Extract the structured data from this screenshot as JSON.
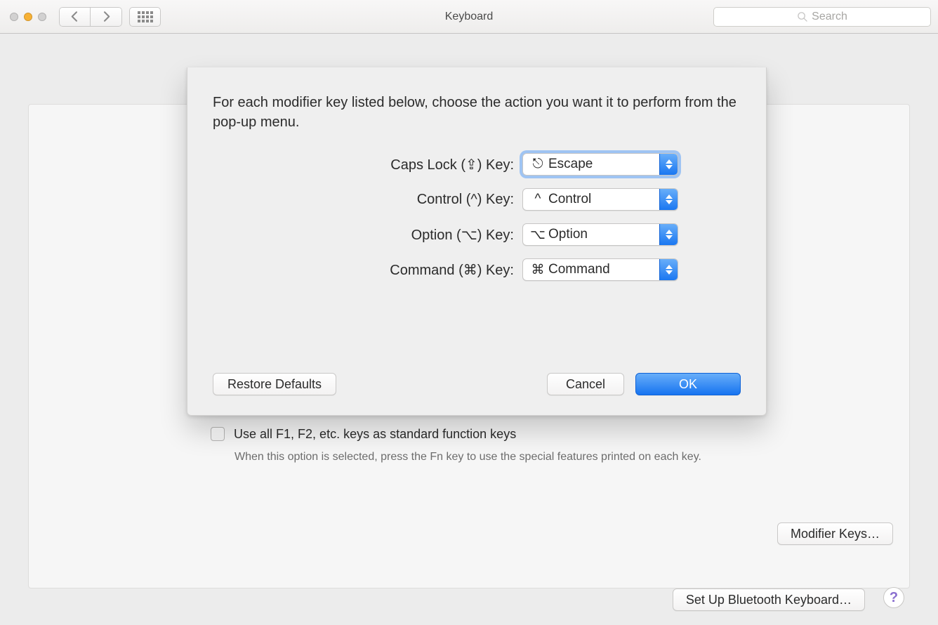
{
  "window": {
    "title": "Keyboard",
    "search_placeholder": "Search"
  },
  "sheet": {
    "description": "For each modifier key listed below, choose the action you want it to perform from the pop-up menu.",
    "rows": [
      {
        "label": "Caps Lock (⇪) Key:",
        "symbol": "⎋",
        "value": "Escape",
        "focused": true
      },
      {
        "label": "Control (^) Key:",
        "symbol": "^",
        "value": "Control",
        "focused": false
      },
      {
        "label": "Option (⌥) Key:",
        "symbol": "⌥",
        "value": "Option",
        "focused": false
      },
      {
        "label": "Command (⌘) Key:",
        "symbol": "⌘",
        "value": "Command",
        "focused": false
      }
    ],
    "restore_label": "Restore Defaults",
    "cancel_label": "Cancel",
    "ok_label": "OK"
  },
  "main": {
    "fn_checkbox_label": "Use all F1, F2, etc. keys as standard function keys",
    "fn_description": "When this option is selected, press the Fn key to use the special features printed on each key.",
    "modifier_keys_button": "Modifier Keys…",
    "bluetooth_button": "Set Up Bluetooth Keyboard…"
  },
  "colors": {
    "accent": "#1673f0",
    "focus_ring": "#5da0f5",
    "window_bg": "#ececec",
    "sheet_bg": "#efefef"
  }
}
